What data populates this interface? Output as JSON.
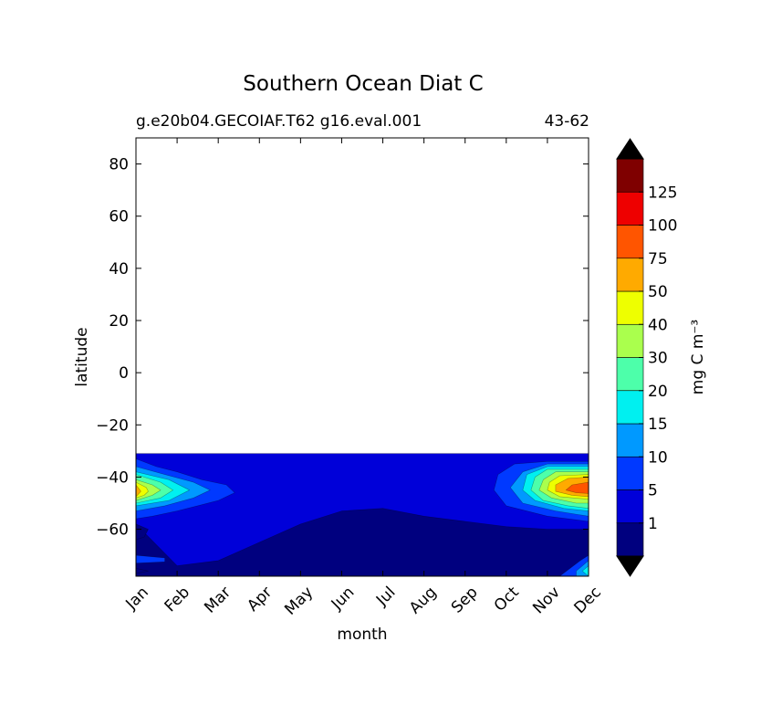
{
  "chart_data": {
    "type": "heatmap",
    "title": "Southern Ocean Diat C",
    "subtitle_left": "g.e20b04.GECOIAF.T62 g16.eval.001",
    "subtitle_right": "43-62",
    "xlabel": "month",
    "ylabel": "latitude",
    "x_categories": [
      "Jan",
      "Feb",
      "Mar",
      "Apr",
      "May",
      "Jun",
      "Jul",
      "Aug",
      "Sep",
      "Oct",
      "Nov",
      "Dec"
    ],
    "y_ticks": [
      "80",
      "60",
      "40",
      "20",
      "0",
      "−20",
      "−40",
      "−60"
    ],
    "y_tick_values": [
      80,
      60,
      40,
      20,
      0,
      -20,
      -40,
      -60
    ],
    "ylim": [
      -78,
      90
    ],
    "data_lat_max": -31,
    "colorbar": {
      "label": "mg C m⁻³",
      "levels": [
        1,
        5,
        10,
        15,
        20,
        30,
        40,
        50,
        75,
        100,
        125
      ],
      "tick_labels": [
        "1",
        "5",
        "10",
        "15",
        "20",
        "30",
        "40",
        "50",
        "75",
        "100",
        "125"
      ],
      "colors": [
        "#00007f",
        "#0000d9",
        "#0039ff",
        "#0099ff",
        "#00f0f0",
        "#4dffaa",
        "#aaff4d",
        "#eeff00",
        "#ffaa00",
        "#ff5500",
        "#ee0000",
        "#7f0000"
      ],
      "extend": "both",
      "under_color": "#000000",
      "over_color": "#000000"
    },
    "regions": [
      {
        "level_index": 1,
        "desc": "main band",
        "points": [
          [
            0,
            -31
          ],
          [
            11,
            -31
          ],
          [
            11,
            -60
          ],
          [
            10,
            -60
          ],
          [
            9,
            -59
          ],
          [
            8,
            -57
          ],
          [
            7,
            -55
          ],
          [
            6,
            -52
          ],
          [
            5,
            -53
          ],
          [
            4,
            -58
          ],
          [
            3,
            -65
          ],
          [
            2,
            -72
          ],
          [
            1,
            -74
          ],
          [
            0,
            -58
          ]
        ]
      },
      {
        "level_index": 2,
        "points": [
          [
            0,
            -33
          ],
          [
            0.5,
            -36
          ],
          [
            1,
            -38
          ],
          [
            1.6,
            -41
          ],
          [
            2.2,
            -43
          ],
          [
            2.4,
            -46
          ],
          [
            2,
            -49
          ],
          [
            1.5,
            -51
          ],
          [
            1,
            -53
          ],
          [
            0.4,
            -55
          ],
          [
            0,
            -56
          ]
        ]
      },
      {
        "level_index": 2,
        "points": [
          [
            11,
            -34
          ],
          [
            10,
            -34
          ],
          [
            9.2,
            -35
          ],
          [
            8.8,
            -39
          ],
          [
            8.7,
            -45
          ],
          [
            9,
            -51
          ],
          [
            10,
            -55
          ],
          [
            11,
            -57
          ]
        ]
      },
      {
        "level_index": 2,
        "points": [
          [
            10.3,
            -78
          ],
          [
            10.8,
            -72
          ],
          [
            11,
            -70
          ],
          [
            11,
            -78
          ]
        ]
      },
      {
        "level_index": 3,
        "points": [
          [
            0,
            -36
          ],
          [
            0.7,
            -39
          ],
          [
            1.4,
            -42
          ],
          [
            1.8,
            -45
          ],
          [
            1.4,
            -48
          ],
          [
            0.7,
            -51
          ],
          [
            0,
            -53
          ]
        ]
      },
      {
        "level_index": 3,
        "points": [
          [
            11,
            -35
          ],
          [
            10,
            -35
          ],
          [
            9.4,
            -38
          ],
          [
            9.1,
            -44
          ],
          [
            9.4,
            -50
          ],
          [
            10.2,
            -53
          ],
          [
            11,
            -55
          ]
        ]
      },
      {
        "level_index": 4,
        "points": [
          [
            0,
            -38
          ],
          [
            0.8,
            -41
          ],
          [
            1.3,
            -45
          ],
          [
            0.8,
            -49
          ],
          [
            0,
            -51
          ]
        ]
      },
      {
        "level_index": 4,
        "points": [
          [
            11,
            -36
          ],
          [
            10,
            -36
          ],
          [
            9.5,
            -39
          ],
          [
            9.4,
            -45
          ],
          [
            9.7,
            -49
          ],
          [
            10.4,
            -52
          ],
          [
            11,
            -53
          ]
        ]
      },
      {
        "level_index": 5,
        "points": [
          [
            0,
            -39
          ],
          [
            0.6,
            -42
          ],
          [
            0.9,
            -45
          ],
          [
            0.6,
            -48
          ],
          [
            0,
            -50
          ]
        ]
      },
      {
        "level_index": 5,
        "points": [
          [
            11,
            -37
          ],
          [
            10,
            -37
          ],
          [
            9.7,
            -40
          ],
          [
            9.6,
            -45
          ],
          [
            9.9,
            -49
          ],
          [
            10.5,
            -51
          ],
          [
            11,
            -52
          ]
        ]
      },
      {
        "level_index": 6,
        "points": [
          [
            0,
            -41
          ],
          [
            0.4,
            -43
          ],
          [
            0.6,
            -45
          ],
          [
            0.4,
            -47
          ],
          [
            0,
            -49
          ]
        ]
      },
      {
        "level_index": 6,
        "points": [
          [
            11,
            -38
          ],
          [
            10.2,
            -38
          ],
          [
            9.9,
            -41
          ],
          [
            9.8,
            -45
          ],
          [
            10.1,
            -48
          ],
          [
            10.7,
            -50
          ],
          [
            11,
            -50
          ]
        ]
      },
      {
        "level_index": 7,
        "points": [
          [
            0,
            -42
          ],
          [
            0.25,
            -44
          ],
          [
            0.3,
            -45.5
          ],
          [
            0.2,
            -47
          ],
          [
            0,
            -48
          ]
        ]
      },
      {
        "level_index": 7,
        "points": [
          [
            11,
            -39
          ],
          [
            10.3,
            -39.5
          ],
          [
            10.05,
            -42
          ],
          [
            10,
            -45
          ],
          [
            10.3,
            -47.5
          ],
          [
            11,
            -48.5
          ]
        ]
      },
      {
        "level_index": 8,
        "points": [
          [
            0,
            -43
          ],
          [
            0.12,
            -45.5
          ],
          [
            0,
            -47.5
          ]
        ]
      },
      {
        "level_index": 8,
        "points": [
          [
            11,
            -40
          ],
          [
            10.5,
            -40.5
          ],
          [
            10.2,
            -43
          ],
          [
            10.2,
            -45.5
          ],
          [
            10.6,
            -47
          ],
          [
            11,
            -47.5
          ]
        ]
      },
      {
        "level_index": 9,
        "points": [
          [
            11,
            -42
          ],
          [
            10.6,
            -43
          ],
          [
            10.45,
            -45
          ],
          [
            10.7,
            -46
          ],
          [
            11,
            -46.3
          ]
        ]
      },
      {
        "level_index": 0,
        "points": [
          [
            0,
            -58
          ],
          [
            0.3,
            -60
          ],
          [
            0.2,
            -63
          ],
          [
            0,
            -64
          ]
        ]
      },
      {
        "level_index": 0,
        "points": [
          [
            0,
            -75
          ],
          [
            0.3,
            -76
          ],
          [
            0,
            -77
          ]
        ]
      },
      {
        "level_index": 3,
        "points": [
          [
            10.7,
            -76
          ],
          [
            11,
            -72
          ],
          [
            11,
            -78
          ],
          [
            10.7,
            -78
          ]
        ]
      },
      {
        "level_index": 4,
        "points": [
          [
            10.85,
            -76
          ],
          [
            11,
            -74
          ],
          [
            11,
            -78
          ]
        ]
      },
      {
        "level_index": 2,
        "points": [
          [
            0,
            -70
          ],
          [
            0.7,
            -71
          ],
          [
            0.7,
            -72.5
          ],
          [
            0,
            -73
          ]
        ]
      }
    ]
  }
}
